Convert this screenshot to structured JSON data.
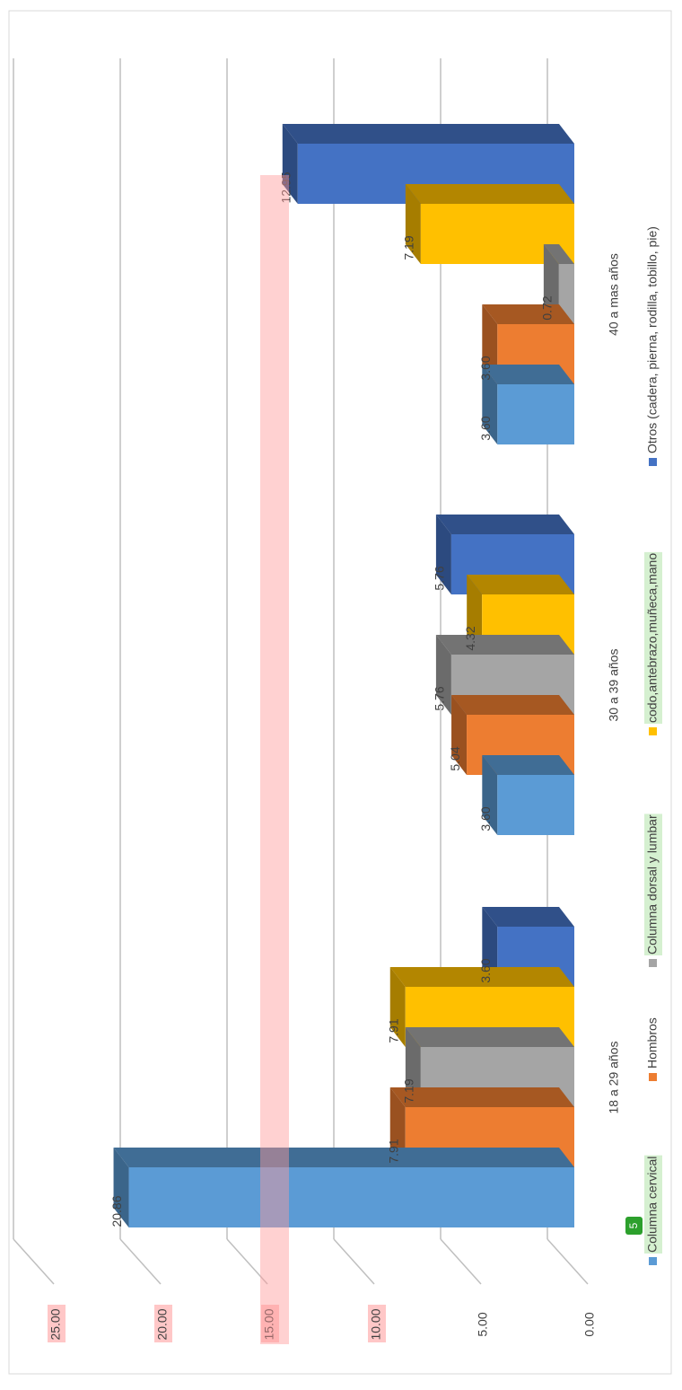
{
  "chart_data": {
    "type": "bar",
    "categories": [
      "18 a 29 años",
      "30 a 39 años",
      "40 a mas años"
    ],
    "series": [
      {
        "name": "Columna cervical",
        "color": "#5b9bd5",
        "values": [
          20.86,
          3.6,
          3.6
        ],
        "value_labels": [
          "20.86",
          "3.60",
          "3.60"
        ]
      },
      {
        "name": "Hombros",
        "color": "#ed7d31",
        "values": [
          7.91,
          5.04,
          3.6
        ],
        "value_labels": [
          "7.91",
          "5.04",
          "3.60"
        ]
      },
      {
        "name": "Columna dorsal y lumbar",
        "color": "#a5a5a5",
        "values": [
          7.19,
          5.76,
          0.72
        ],
        "value_labels": [
          "7.19",
          "5.76",
          "0.72"
        ]
      },
      {
        "name": "codo,antebrazo,muñeca,mano",
        "color": "#ffc000",
        "values": [
          7.91,
          4.32,
          7.19
        ],
        "value_labels": [
          "7.91",
          "4.32",
          "7.19"
        ]
      },
      {
        "name": "Otros (cadera, pierna, rodilla, tobillo, pie)",
        "color": "#4472c4",
        "values": [
          3.6,
          5.76,
          12.95
        ],
        "value_labels": [
          "3.60",
          "5.76",
          "12.95"
        ]
      }
    ],
    "ylim": [
      0,
      25
    ],
    "yticks": [
      {
        "value": 0,
        "label": "0.00"
      },
      {
        "value": 5,
        "label": "5.00"
      },
      {
        "value": 10,
        "label": "10.00"
      },
      {
        "value": 15,
        "label": "15.00"
      },
      {
        "value": 20,
        "label": "20.00"
      },
      {
        "value": 25,
        "label": "25.00"
      }
    ],
    "grid": true,
    "legend": "bottom",
    "annotation": "5"
  }
}
